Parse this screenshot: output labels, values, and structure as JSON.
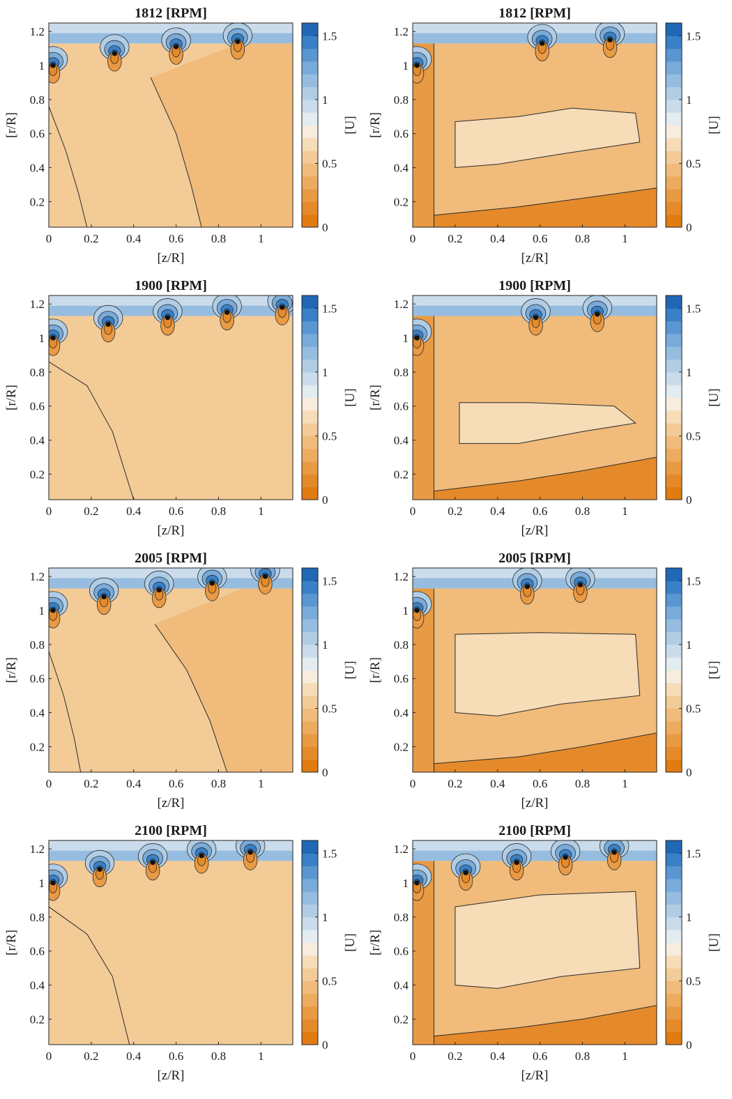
{
  "colormap": [
    "#e07b12",
    "#e58a2a",
    "#e99a44",
    "#edab5f",
    "#f0bb7b",
    "#f3cb97",
    "#f6dcb7",
    "#f7ecdd",
    "#e2ecf1",
    "#cadceb",
    "#b1cde5",
    "#96bde0",
    "#79abda",
    "#5a97d2",
    "#3a80c6",
    "#2067b5"
  ],
  "contour_line_color": "#2b2b2b",
  "chart_data": [
    {
      "type": "heatmap",
      "title": "1812 [RPM]",
      "xlabel": "[z/R]",
      "ylabel": "[r/R]",
      "colorbar_label": "[U]",
      "xlim": [
        0,
        1.15
      ],
      "ylim": [
        0.05,
        1.25
      ],
      "clim": [
        0,
        1.6
      ],
      "grid": false,
      "xticks": [
        "0",
        "0.2",
        "0.4",
        "0.6",
        "0.8",
        "1"
      ],
      "yticks": [
        "0.2",
        "0.4",
        "0.6",
        "0.8",
        "1",
        "1.2"
      ],
      "cbar_ticks": [
        "0",
        "0.5",
        "1",
        "1.5"
      ],
      "blade_tips": [
        [
          0.02,
          1.0
        ],
        [
          0.31,
          1.07
        ],
        [
          0.6,
          1.11
        ],
        [
          0.89,
          1.14
        ]
      ],
      "contours": [
        {
          "level": 0.6,
          "points": [
            [
              0,
              0.76
            ],
            [
              0.08,
              0.5
            ],
            [
              0.14,
              0.25
            ],
            [
              0.18,
              0.05
            ]
          ]
        },
        {
          "level": 0.55,
          "points": [
            [
              0.48,
              0.93
            ],
            [
              0.6,
              0.6
            ],
            [
              0.67,
              0.3
            ],
            [
              0.72,
              0.05
            ]
          ]
        }
      ],
      "background_level": 0.52
    },
    {
      "type": "heatmap",
      "title": "1812 [RPM]",
      "xlabel": "[z/R]",
      "ylabel": "[r/R]",
      "colorbar_label": "[U]",
      "xlim": [
        0,
        1.15
      ],
      "ylim": [
        0.05,
        1.25
      ],
      "clim": [
        0,
        1.6
      ],
      "grid": false,
      "xticks": [
        "0",
        "0.2",
        "0.4",
        "0.6",
        "0.8",
        "1"
      ],
      "yticks": [
        "0.2",
        "0.4",
        "0.6",
        "0.8",
        "1",
        "1.2"
      ],
      "cbar_ticks": [
        "0",
        "0.5",
        "1",
        "1.5"
      ],
      "blade_tips": [
        [
          0.02,
          1.0
        ],
        [
          0.61,
          1.13
        ],
        [
          0.93,
          1.15
        ]
      ],
      "core_region": {
        "level": 0.65,
        "points": [
          [
            0.2,
            0.67
          ],
          [
            0.5,
            0.7
          ],
          [
            0.75,
            0.75
          ],
          [
            1.05,
            0.72
          ],
          [
            1.07,
            0.55
          ],
          [
            0.7,
            0.48
          ],
          [
            0.4,
            0.42
          ],
          [
            0.2,
            0.4
          ]
        ]
      },
      "wake_region": {
        "level": 0.15,
        "points": [
          [
            0.1,
            0.12
          ],
          [
            0.5,
            0.17
          ],
          [
            0.8,
            0.22
          ],
          [
            1.15,
            0.28
          ],
          [
            1.15,
            0.05
          ],
          [
            0.1,
            0.05
          ]
        ]
      },
      "background_level": 0.48
    },
    {
      "type": "heatmap",
      "title": "1900 [RPM]",
      "xlabel": "[z/R]",
      "ylabel": "[r/R]",
      "colorbar_label": "[U]",
      "xlim": [
        0,
        1.15
      ],
      "ylim": [
        0.05,
        1.25
      ],
      "clim": [
        0,
        1.6
      ],
      "grid": false,
      "xticks": [
        "0",
        "0.2",
        "0.4",
        "0.6",
        "0.8",
        "1"
      ],
      "yticks": [
        "0.2",
        "0.4",
        "0.6",
        "0.8",
        "1",
        "1.2"
      ],
      "cbar_ticks": [
        "0",
        "0.5",
        "1",
        "1.5"
      ],
      "blade_tips": [
        [
          0.02,
          1.0
        ],
        [
          0.28,
          1.08
        ],
        [
          0.56,
          1.12
        ],
        [
          0.84,
          1.15
        ],
        [
          1.1,
          1.18
        ]
      ],
      "contours": [
        {
          "level": 0.58,
          "points": [
            [
              0,
              0.86
            ],
            [
              0.18,
              0.72
            ],
            [
              0.3,
              0.45
            ],
            [
              0.4,
              0.05
            ]
          ]
        }
      ],
      "background_level": 0.52
    },
    {
      "type": "heatmap",
      "title": "1900 [RPM]",
      "xlabel": "[z/R]",
      "ylabel": "[r/R]",
      "colorbar_label": "[U]",
      "xlim": [
        0,
        1.15
      ],
      "ylim": [
        0.05,
        1.25
      ],
      "clim": [
        0,
        1.6
      ],
      "grid": false,
      "xticks": [
        "0",
        "0.2",
        "0.4",
        "0.6",
        "0.8",
        "1"
      ],
      "yticks": [
        "0.2",
        "0.4",
        "0.6",
        "0.8",
        "1",
        "1.2"
      ],
      "cbar_ticks": [
        "0",
        "0.5",
        "1",
        "1.5"
      ],
      "blade_tips": [
        [
          0.02,
          1.0
        ],
        [
          0.58,
          1.12
        ],
        [
          0.87,
          1.14
        ]
      ],
      "core_region": {
        "level": 0.62,
        "points": [
          [
            0.22,
            0.62
          ],
          [
            0.55,
            0.62
          ],
          [
            0.95,
            0.6
          ],
          [
            1.05,
            0.5
          ],
          [
            0.8,
            0.45
          ],
          [
            0.5,
            0.38
          ],
          [
            0.22,
            0.38
          ]
        ]
      },
      "wake_region": {
        "level": 0.15,
        "points": [
          [
            0.1,
            0.1
          ],
          [
            0.5,
            0.16
          ],
          [
            0.8,
            0.22
          ],
          [
            1.15,
            0.3
          ],
          [
            1.15,
            0.05
          ],
          [
            0.1,
            0.05
          ]
        ]
      },
      "background_level": 0.48
    },
    {
      "type": "heatmap",
      "title": "2005 [RPM]",
      "xlabel": "[z/R]",
      "ylabel": "[r/R]",
      "colorbar_label": "[U]",
      "xlim": [
        0,
        1.15
      ],
      "ylim": [
        0.05,
        1.25
      ],
      "clim": [
        0,
        1.6
      ],
      "grid": false,
      "xticks": [
        "0",
        "0.2",
        "0.4",
        "0.6",
        "0.8",
        "1"
      ],
      "yticks": [
        "0.2",
        "0.4",
        "0.6",
        "0.8",
        "1",
        "1.2"
      ],
      "cbar_ticks": [
        "0",
        "0.5",
        "1",
        "1.5"
      ],
      "blade_tips": [
        [
          0.02,
          1.0
        ],
        [
          0.26,
          1.08
        ],
        [
          0.52,
          1.12
        ],
        [
          0.77,
          1.16
        ],
        [
          1.02,
          1.2
        ]
      ],
      "contours": [
        {
          "level": 0.6,
          "points": [
            [
              0,
              0.76
            ],
            [
              0.07,
              0.5
            ],
            [
              0.12,
              0.25
            ],
            [
              0.15,
              0.05
            ]
          ]
        },
        {
          "level": 0.55,
          "points": [
            [
              0.5,
              0.92
            ],
            [
              0.65,
              0.65
            ],
            [
              0.76,
              0.35
            ],
            [
              0.84,
              0.05
            ]
          ]
        }
      ],
      "background_level": 0.52
    },
    {
      "type": "heatmap",
      "title": "2005 [RPM]",
      "xlabel": "[z/R]",
      "ylabel": "[r/R]",
      "colorbar_label": "[U]",
      "xlim": [
        0,
        1.15
      ],
      "ylim": [
        0.05,
        1.25
      ],
      "clim": [
        0,
        1.6
      ],
      "grid": false,
      "xticks": [
        "0",
        "0.2",
        "0.4",
        "0.6",
        "0.8",
        "1"
      ],
      "yticks": [
        "0.2",
        "0.4",
        "0.6",
        "0.8",
        "1",
        "1.2"
      ],
      "cbar_ticks": [
        "0",
        "0.5",
        "1",
        "1.5"
      ],
      "blade_tips": [
        [
          0.02,
          1.0
        ],
        [
          0.54,
          1.14
        ],
        [
          0.79,
          1.15
        ]
      ],
      "core_region": {
        "level": 0.65,
        "points": [
          [
            0.2,
            0.86
          ],
          [
            0.6,
            0.87
          ],
          [
            1.05,
            0.86
          ],
          [
            1.07,
            0.5
          ],
          [
            0.7,
            0.45
          ],
          [
            0.4,
            0.38
          ],
          [
            0.2,
            0.4
          ]
        ]
      },
      "wake_region": {
        "level": 0.15,
        "points": [
          [
            0.1,
            0.1
          ],
          [
            0.5,
            0.14
          ],
          [
            0.8,
            0.2
          ],
          [
            1.15,
            0.28
          ],
          [
            1.15,
            0.05
          ],
          [
            0.1,
            0.05
          ]
        ]
      },
      "background_level": 0.48
    },
    {
      "type": "heatmap",
      "title": "2100 [RPM]",
      "xlabel": "[z/R]",
      "ylabel": "[r/R]",
      "colorbar_label": "[U]",
      "xlim": [
        0,
        1.15
      ],
      "ylim": [
        0.05,
        1.25
      ],
      "clim": [
        0,
        1.6
      ],
      "grid": false,
      "xticks": [
        "0",
        "0.2",
        "0.4",
        "0.6",
        "0.8",
        "1"
      ],
      "yticks": [
        "0.2",
        "0.4",
        "0.6",
        "0.8",
        "1",
        "1.2"
      ],
      "cbar_ticks": [
        "0",
        "0.5",
        "1",
        "1.5"
      ],
      "blade_tips": [
        [
          0.02,
          1.0
        ],
        [
          0.24,
          1.08
        ],
        [
          0.49,
          1.12
        ],
        [
          0.72,
          1.16
        ],
        [
          0.95,
          1.18
        ]
      ],
      "contours": [
        {
          "level": 0.58,
          "points": [
            [
              0,
              0.86
            ],
            [
              0.18,
              0.7
            ],
            [
              0.3,
              0.45
            ],
            [
              0.38,
              0.05
            ]
          ]
        }
      ],
      "background_level": 0.52
    },
    {
      "type": "heatmap",
      "title": "2100 [RPM]",
      "xlabel": "[z/R]",
      "ylabel": "[r/R]",
      "colorbar_label": "[U]",
      "xlim": [
        0,
        1.15
      ],
      "ylim": [
        0.05,
        1.25
      ],
      "clim": [
        0,
        1.6
      ],
      "grid": false,
      "xticks": [
        "0",
        "0.2",
        "0.4",
        "0.6",
        "0.8",
        "1"
      ],
      "yticks": [
        "0.2",
        "0.4",
        "0.6",
        "0.8",
        "1",
        "1.2"
      ],
      "cbar_ticks": [
        "0",
        "0.5",
        "1",
        "1.5"
      ],
      "blade_tips": [
        [
          0.02,
          1.0
        ],
        [
          0.25,
          1.06
        ],
        [
          0.49,
          1.12
        ],
        [
          0.72,
          1.15
        ],
        [
          0.95,
          1.18
        ]
      ],
      "core_region": {
        "level": 0.62,
        "points": [
          [
            0.2,
            0.86
          ],
          [
            0.6,
            0.93
          ],
          [
            1.05,
            0.95
          ],
          [
            1.07,
            0.5
          ],
          [
            0.7,
            0.45
          ],
          [
            0.4,
            0.38
          ],
          [
            0.2,
            0.4
          ]
        ]
      },
      "wake_region": {
        "level": 0.15,
        "points": [
          [
            0.1,
            0.1
          ],
          [
            0.5,
            0.15
          ],
          [
            0.8,
            0.2
          ],
          [
            1.15,
            0.28
          ],
          [
            1.15,
            0.05
          ],
          [
            0.1,
            0.05
          ]
        ]
      },
      "background_level": 0.48
    }
  ]
}
